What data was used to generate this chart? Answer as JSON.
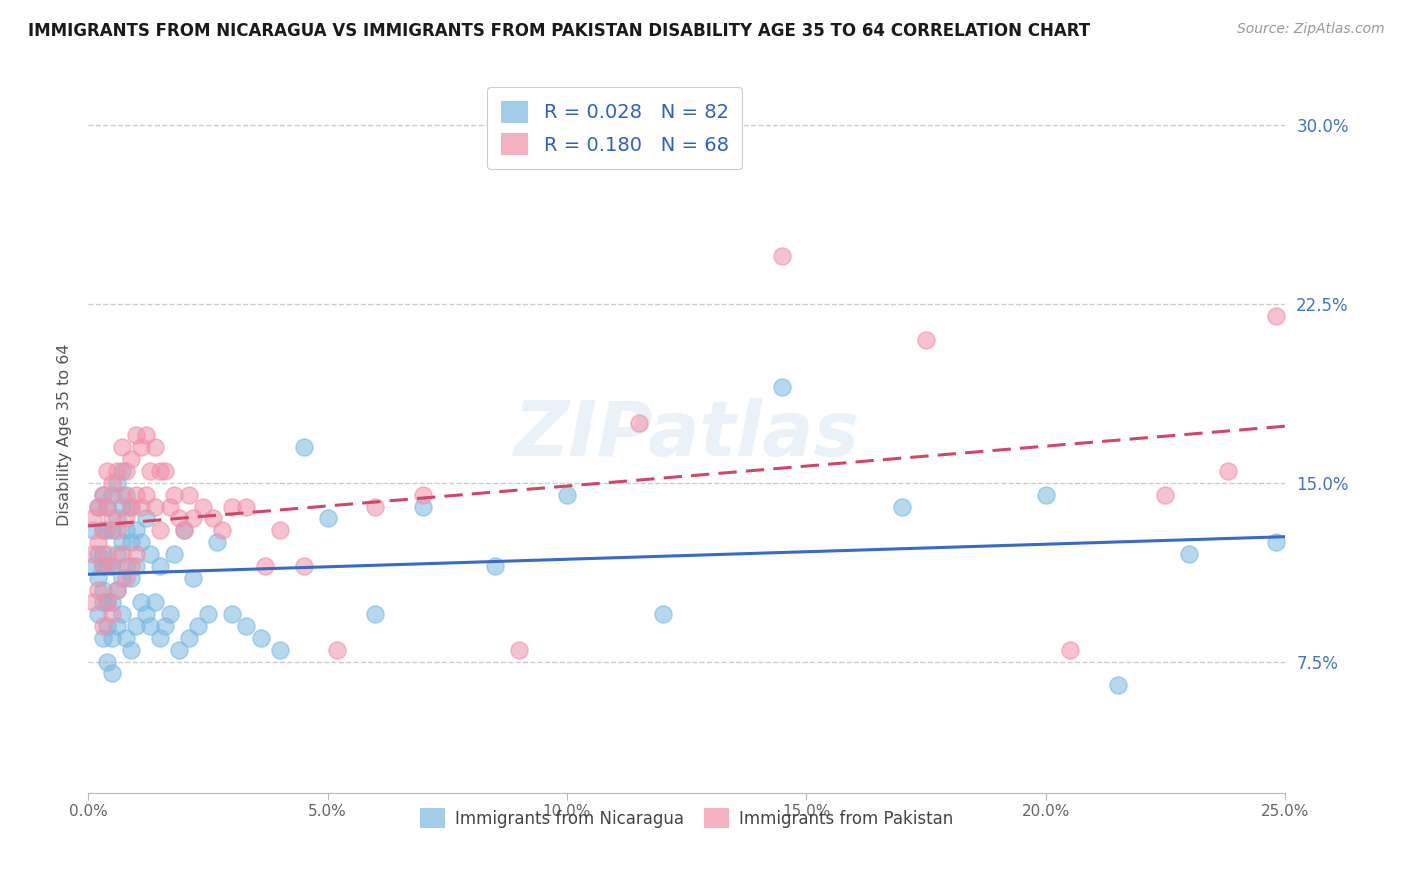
{
  "title": "IMMIGRANTS FROM NICARAGUA VS IMMIGRANTS FROM PAKISTAN DISABILITY AGE 35 TO 64 CORRELATION CHART",
  "source": "Source: ZipAtlas.com",
  "ylabel": "Disability Age 35 to 64",
  "ytick_labels": [
    "7.5%",
    "15.0%",
    "22.5%",
    "30.0%"
  ],
  "ytick_values": [
    0.075,
    0.15,
    0.225,
    0.3
  ],
  "xlim": [
    0.0,
    0.25
  ],
  "ylim": [
    0.02,
    0.32
  ],
  "xtick_values": [
    0.0,
    0.05,
    0.1,
    0.15,
    0.2,
    0.25
  ],
  "xtick_labels": [
    "0.0%",
    "5.0%",
    "10.0%",
    "15.0%",
    "20.0%",
    "25.0%"
  ],
  "legend_label1": "R = 0.028   N = 82",
  "legend_label2": "R = 0.180   N = 68",
  "series1_color": "#7ab8e0",
  "series2_color": "#f090a8",
  "trendline1_color": "#3a6bc4",
  "trendline2_color": "#d04868",
  "trendline2_dash": true,
  "watermark": "ZIPatlas",
  "bottom_label1": "Immigrants from Nicaragua",
  "bottom_label2": "Immigrants from Pakistan",
  "nicaragua_x": [
    0.001,
    0.001,
    0.002,
    0.002,
    0.002,
    0.002,
    0.003,
    0.003,
    0.003,
    0.003,
    0.003,
    0.003,
    0.003,
    0.004,
    0.004,
    0.004,
    0.004,
    0.004,
    0.004,
    0.005,
    0.005,
    0.005,
    0.005,
    0.005,
    0.005,
    0.006,
    0.006,
    0.006,
    0.006,
    0.006,
    0.007,
    0.007,
    0.007,
    0.007,
    0.007,
    0.008,
    0.008,
    0.008,
    0.008,
    0.009,
    0.009,
    0.009,
    0.009,
    0.01,
    0.01,
    0.01,
    0.011,
    0.011,
    0.012,
    0.012,
    0.013,
    0.013,
    0.014,
    0.015,
    0.015,
    0.016,
    0.017,
    0.018,
    0.019,
    0.02,
    0.021,
    0.022,
    0.023,
    0.025,
    0.027,
    0.03,
    0.033,
    0.036,
    0.04,
    0.045,
    0.05,
    0.06,
    0.07,
    0.085,
    0.1,
    0.12,
    0.145,
    0.17,
    0.2,
    0.215,
    0.23,
    0.248
  ],
  "nicaragua_y": [
    0.13,
    0.115,
    0.14,
    0.12,
    0.11,
    0.095,
    0.145,
    0.13,
    0.115,
    0.1,
    0.085,
    0.12,
    0.105,
    0.14,
    0.13,
    0.115,
    0.1,
    0.09,
    0.075,
    0.145,
    0.13,
    0.115,
    0.1,
    0.085,
    0.07,
    0.15,
    0.135,
    0.12,
    0.105,
    0.09,
    0.155,
    0.14,
    0.125,
    0.11,
    0.095,
    0.145,
    0.13,
    0.115,
    0.085,
    0.14,
    0.125,
    0.11,
    0.08,
    0.13,
    0.115,
    0.09,
    0.125,
    0.1,
    0.135,
    0.095,
    0.12,
    0.09,
    0.1,
    0.115,
    0.085,
    0.09,
    0.095,
    0.12,
    0.08,
    0.13,
    0.085,
    0.11,
    0.09,
    0.095,
    0.125,
    0.095,
    0.09,
    0.085,
    0.08,
    0.165,
    0.135,
    0.095,
    0.14,
    0.115,
    0.145,
    0.095,
    0.19,
    0.14,
    0.145,
    0.065,
    0.12,
    0.125
  ],
  "pakistan_x": [
    0.001,
    0.001,
    0.001,
    0.002,
    0.002,
    0.002,
    0.003,
    0.003,
    0.003,
    0.003,
    0.004,
    0.004,
    0.004,
    0.004,
    0.005,
    0.005,
    0.005,
    0.005,
    0.006,
    0.006,
    0.006,
    0.007,
    0.007,
    0.007,
    0.008,
    0.008,
    0.008,
    0.009,
    0.009,
    0.009,
    0.01,
    0.01,
    0.01,
    0.011,
    0.011,
    0.012,
    0.012,
    0.013,
    0.014,
    0.014,
    0.015,
    0.015,
    0.016,
    0.017,
    0.018,
    0.019,
    0.02,
    0.021,
    0.022,
    0.024,
    0.026,
    0.028,
    0.03,
    0.033,
    0.037,
    0.04,
    0.045,
    0.052,
    0.06,
    0.07,
    0.09,
    0.115,
    0.145,
    0.175,
    0.205,
    0.225,
    0.238,
    0.248
  ],
  "pakistan_y": [
    0.135,
    0.12,
    0.1,
    0.14,
    0.125,
    0.105,
    0.145,
    0.13,
    0.115,
    0.09,
    0.155,
    0.14,
    0.12,
    0.1,
    0.15,
    0.135,
    0.115,
    0.095,
    0.155,
    0.13,
    0.105,
    0.165,
    0.145,
    0.12,
    0.155,
    0.135,
    0.11,
    0.16,
    0.14,
    0.115,
    0.17,
    0.145,
    0.12,
    0.165,
    0.14,
    0.17,
    0.145,
    0.155,
    0.165,
    0.14,
    0.155,
    0.13,
    0.155,
    0.14,
    0.145,
    0.135,
    0.13,
    0.145,
    0.135,
    0.14,
    0.135,
    0.13,
    0.14,
    0.14,
    0.115,
    0.13,
    0.115,
    0.08,
    0.14,
    0.145,
    0.08,
    0.175,
    0.245,
    0.21,
    0.08,
    0.145,
    0.155,
    0.22
  ]
}
